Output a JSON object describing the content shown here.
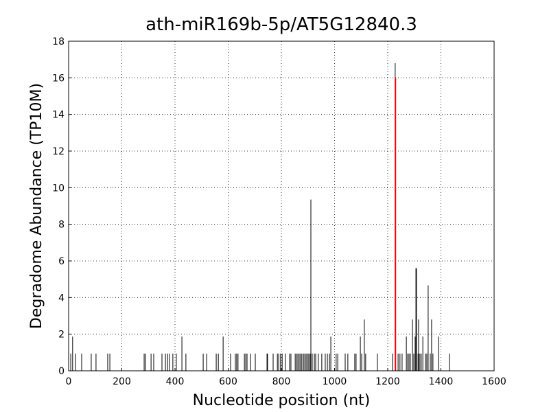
{
  "chart_data": {
    "type": "stem",
    "title": "ath-miR169b-5p/AT5G12840.3",
    "x_label": "Nucleotide position (nt)",
    "y_label": "Degradome Abundance (TP10M)",
    "xlim": [
      0,
      1600
    ],
    "xticks": [
      0,
      200,
      400,
      600,
      800,
      1000,
      1200,
      1400,
      1600
    ],
    "ylim": [
      0,
      18
    ],
    "yticks": [
      0,
      2,
      4,
      6,
      8,
      10,
      12,
      14,
      16,
      18
    ],
    "grid": true,
    "series": [
      {
        "color": "#000000",
        "x": [
          8,
          15,
          26,
          49,
          85,
          103,
          147,
          155,
          284,
          289,
          310,
          320,
          351,
          364,
          372,
          379,
          392,
          405,
          426,
          441,
          506,
          519,
          555,
          563,
          581,
          609,
          627,
          632,
          637,
          661,
          666,
          671,
          684,
          702,
          746,
          748,
          769,
          785,
          790,
          797,
          803,
          815,
          831,
          836,
          852,
          857,
          862,
          867,
          872,
          877,
          883,
          888,
          893,
          898,
          903,
          908,
          911,
          916,
          924,
          929,
          939,
          952,
          965,
          973,
          981,
          986,
          1006,
          1012,
          1040,
          1050,
          1076,
          1081,
          1097,
          1102,
          1112,
          1117,
          1161,
          1218,
          1228,
          1239,
          1246,
          1254,
          1270,
          1275,
          1280,
          1285,
          1293,
          1298,
          1303,
          1306,
          1308,
          1314,
          1316,
          1321,
          1326,
          1332,
          1342,
          1347,
          1352,
          1360,
          1365,
          1370,
          1391,
          1432
        ],
        "values": [
          0.94,
          1.87,
          0.94,
          0.94,
          0.94,
          0.94,
          0.94,
          0.94,
          0.94,
          0.94,
          0.94,
          0.94,
          0.94,
          0.94,
          0.94,
          0.94,
          0.94,
          0.94,
          1.87,
          0.94,
          0.94,
          0.94,
          0.94,
          0.94,
          1.87,
          0.94,
          0.94,
          0.94,
          0.94,
          0.94,
          0.94,
          0.94,
          0.94,
          0.94,
          0.94,
          0.94,
          0.94,
          0.94,
          0.94,
          0.94,
          0.94,
          0.94,
          0.94,
          0.94,
          0.94,
          0.94,
          0.94,
          0.94,
          0.94,
          0.94,
          0.94,
          0.94,
          0.94,
          0.94,
          0.94,
          0.94,
          9.35,
          0.94,
          0.94,
          0.94,
          0.94,
          0.94,
          0.94,
          0.94,
          0.94,
          1.87,
          0.94,
          0.94,
          0.94,
          0.94,
          0.94,
          0.94,
          1.87,
          0.94,
          2.8,
          0.94,
          0.94,
          0.94,
          16.8,
          0.94,
          0.94,
          0.94,
          1.87,
          0.94,
          0.94,
          0.94,
          2.8,
          0.94,
          1.87,
          5.6,
          5.6,
          0.94,
          2.8,
          0.94,
          0.94,
          1.87,
          0.94,
          0.94,
          4.67,
          0.94,
          2.8,
          0.94,
          1.87,
          0.94
        ]
      },
      {
        "color": "#ff0000",
        "x": [
          1229
        ],
        "values": [
          16
        ]
      }
    ]
  }
}
